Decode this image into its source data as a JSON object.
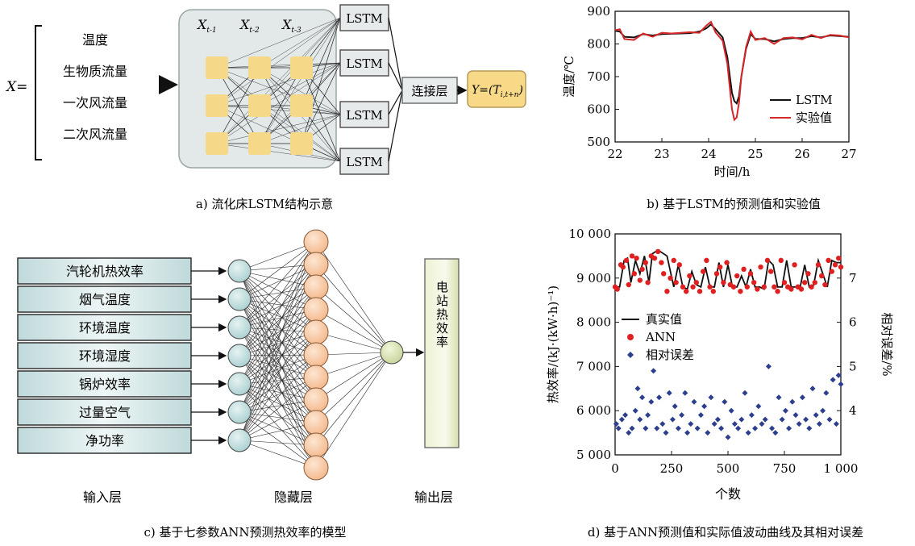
{
  "panel_a": {
    "caption": "a) 流化床LSTM结构示意",
    "x_label": "X=",
    "inputs": [
      "温度",
      "生物质流量",
      "一次风流量",
      "二次风流量"
    ],
    "time_steps": [
      {
        "base": "X",
        "sub": "t-1"
      },
      {
        "base": "X",
        "sub": "t-2"
      },
      {
        "base": "X",
        "sub": "t-3"
      }
    ],
    "lstm_label": "LSTM",
    "concat_label": "连接层",
    "output": {
      "prefix": "Y=(",
      "base": "T",
      "sub": "i,t+n",
      "suffix": ")"
    }
  },
  "panel_b": {
    "caption": "b) 基于LSTM的预测值和实验值",
    "chart_data": {
      "type": "line",
      "xlabel": "时间/h",
      "ylabel": "温度/℃",
      "xlim": [
        22,
        27
      ],
      "ylim": [
        500,
        900
      ],
      "xticks": [
        "22",
        "23",
        "24",
        "25",
        "26",
        "27"
      ],
      "yticks": [
        "500",
        "600",
        "700",
        "800",
        "900"
      ],
      "legend_position": "bottom-right",
      "series": [
        {
          "name": "LSTM",
          "color": "#111111",
          "x": [
            22.0,
            22.1,
            22.2,
            22.4,
            22.6,
            22.8,
            23.0,
            23.2,
            23.4,
            23.6,
            23.8,
            23.95,
            24.05,
            24.15,
            24.3,
            24.4,
            24.5,
            24.55,
            24.6,
            24.65,
            24.7,
            24.8,
            24.9,
            25.0,
            25.2,
            25.4,
            25.6,
            25.8,
            26.0,
            26.2,
            26.4,
            26.6,
            26.8,
            27.0
          ],
          "y": [
            840,
            838,
            822,
            820,
            830,
            826,
            830,
            831,
            832,
            833,
            838,
            848,
            860,
            845,
            820,
            760,
            650,
            625,
            618,
            640,
            700,
            785,
            830,
            815,
            815,
            808,
            815,
            818,
            818,
            824,
            820,
            826,
            824,
            822
          ]
        },
        {
          "name": "实验值",
          "color": "#d62728",
          "x": [
            22.0,
            22.1,
            22.2,
            22.4,
            22.6,
            22.8,
            23.0,
            23.2,
            23.4,
            23.6,
            23.8,
            23.95,
            24.05,
            24.15,
            24.3,
            24.4,
            24.5,
            24.55,
            24.6,
            24.65,
            24.7,
            24.8,
            24.9,
            25.0,
            25.2,
            25.4,
            25.6,
            25.8,
            26.0,
            26.2,
            26.4,
            26.6,
            26.8,
            27.0
          ],
          "y": [
            842,
            845,
            815,
            812,
            832,
            822,
            834,
            832,
            834,
            836,
            834,
            856,
            868,
            835,
            810,
            740,
            600,
            568,
            575,
            620,
            700,
            790,
            838,
            812,
            818,
            800,
            818,
            820,
            814,
            828,
            818,
            828,
            826,
            820
          ]
        }
      ]
    }
  },
  "panel_c": {
    "caption": "c) 基于七参数ANN预测热效率的模型",
    "inputs": [
      "汽轮机热效率",
      "烟气温度",
      "环境温度",
      "环境湿度",
      "锅炉效率",
      "过量空气",
      "净功率"
    ],
    "output_label": "电站热效率",
    "layer_labels": [
      "输入层",
      "隐藏层",
      "输出层"
    ]
  },
  "panel_d": {
    "caption": "d) 基于ANN预测值和实际值波动曲线及其相对误差",
    "chart_data": {
      "type": "line",
      "xlabel": "个数",
      "ylabel": "热效率/(kJ·(kW·h)⁻¹)",
      "y2label": "相对误差/%",
      "xlim": [
        0,
        1000
      ],
      "ylim": [
        5000,
        10000
      ],
      "y2lim": [
        3,
        8
      ],
      "xticks": [
        "0",
        "250",
        "500",
        "750",
        "1 000"
      ],
      "yticks": [
        "5 000",
        "6 000",
        "7 000",
        "8 000",
        "9 000",
        "10 000"
      ],
      "y2ticks": [
        "4",
        "5",
        "6",
        "7"
      ],
      "legend_position": "middle-left",
      "series": [
        {
          "name": "真实值",
          "color": "#111111",
          "marker": "line",
          "x": [
            0,
            20,
            40,
            55,
            70,
            90,
            110,
            130,
            150,
            165,
            180,
            200,
            230,
            260,
            280,
            300,
            320,
            340,
            360,
            380,
            400,
            420,
            440,
            460,
            480,
            500,
            520,
            540,
            560,
            580,
            600,
            620,
            640,
            660,
            680,
            700,
            720,
            740,
            760,
            780,
            800,
            820,
            840,
            860,
            880,
            900,
            920,
            940,
            960,
            980,
            1000
          ],
          "y": [
            8800,
            8800,
            9400,
            9450,
            8900,
            9400,
            9100,
            9500,
            8900,
            9550,
            9600,
            9600,
            9500,
            8800,
            9300,
            8800,
            8750,
            9150,
            8850,
            8800,
            9250,
            8800,
            8800,
            9350,
            8800,
            9300,
            8800,
            8800,
            9050,
            8800,
            9200,
            8800,
            8800,
            8750,
            9400,
            9300,
            8800,
            8800,
            9400,
            8800,
            8800,
            8800,
            9300,
            8800,
            8850,
            9400,
            9100,
            8800,
            9400,
            9350,
            9350
          ]
        },
        {
          "name": "ANN",
          "color": "#e02020",
          "marker": "circle",
          "x": [
            0,
            10,
            25,
            35,
            50,
            60,
            75,
            85,
            95,
            110,
            120,
            135,
            145,
            160,
            175,
            190,
            205,
            215,
            230,
            245,
            260,
            270,
            285,
            300,
            315,
            330,
            345,
            360,
            375,
            390,
            405,
            420,
            435,
            450,
            465,
            480,
            495,
            510,
            525,
            540,
            555,
            570,
            585,
            600,
            615,
            630,
            645,
            660,
            675,
            690,
            705,
            720,
            735,
            750,
            765,
            780,
            795,
            810,
            825,
            840,
            855,
            870,
            885,
            900,
            915,
            930,
            945,
            960,
            975,
            990,
            1000
          ],
          "y": [
            8800,
            8750,
            9300,
            9250,
            9400,
            8850,
            9500,
            9100,
            9450,
            8950,
            9200,
            9350,
            8900,
            9500,
            9450,
            9600,
            9350,
            9100,
            8700,
            9000,
            9400,
            8900,
            9300,
            8800,
            8700,
            9050,
            8800,
            8900,
            8700,
            9150,
            9400,
            8800,
            8700,
            9100,
            9250,
            8900,
            9350,
            8850,
            8800,
            9050,
            8700,
            9200,
            8800,
            9100,
            8900,
            8750,
            9250,
            8800,
            9400,
            9150,
            8800,
            8700,
            9400,
            8900,
            8800,
            8750,
            9300,
            8800,
            8750,
            8900,
            9100,
            8800,
            8900,
            9300,
            9050,
            8850,
            9400,
            9150,
            9300,
            9450,
            9250
          ]
        },
        {
          "name": "相对误差",
          "color": "#2c3e8c",
          "marker": "diamond",
          "x": [
            5,
            15,
            30,
            45,
            60,
            75,
            90,
            100,
            110,
            120,
            135,
            145,
            160,
            170,
            185,
            195,
            210,
            225,
            240,
            255,
            265,
            280,
            295,
            310,
            320,
            335,
            350,
            365,
            380,
            395,
            410,
            425,
            440,
            455,
            470,
            485,
            500,
            515,
            530,
            545,
            560,
            575,
            590,
            605,
            620,
            635,
            650,
            665,
            680,
            695,
            710,
            725,
            740,
            755,
            770,
            785,
            800,
            815,
            830,
            845,
            860,
            875,
            890,
            905,
            920,
            935,
            950,
            965,
            980,
            990,
            1000
          ],
          "y": [
            3.7,
            3.6,
            3.8,
            3.9,
            3.5,
            3.6,
            4.0,
            4.5,
            3.8,
            4.3,
            3.6,
            3.9,
            4.2,
            4.9,
            3.6,
            4.3,
            3.7,
            3.5,
            4.4,
            3.8,
            4.1,
            3.6,
            3.9,
            4.4,
            3.5,
            3.7,
            4.2,
            3.6,
            3.9,
            4.1,
            3.5,
            4.3,
            3.7,
            3.8,
            3.6,
            4.2,
            3.4,
            4.0,
            3.7,
            3.6,
            3.8,
            4.4,
            3.5,
            3.9,
            3.6,
            4.1,
            3.7,
            3.8,
            5.0,
            3.6,
            3.5,
            4.3,
            3.8,
            4.0,
            3.6,
            4.2,
            3.9,
            3.7,
            4.3,
            3.8,
            3.6,
            4.5,
            3.9,
            3.7,
            4.0,
            4.4,
            3.8,
            4.7,
            3.7,
            4.8,
            4.6
          ]
        }
      ]
    }
  }
}
